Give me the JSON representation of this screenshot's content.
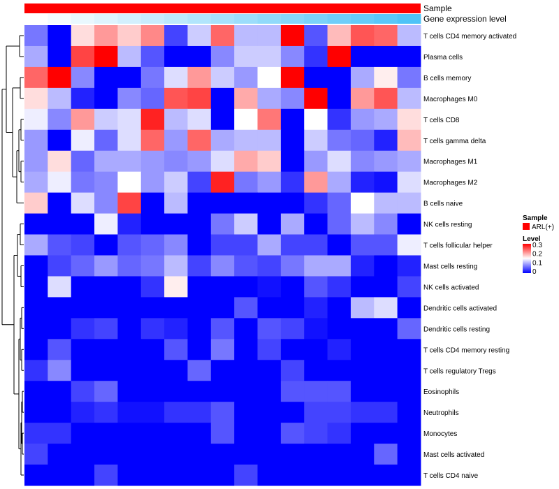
{
  "chart_data": {
    "type": "heatmap",
    "annotations": {
      "sample_label": "Sample",
      "expression_label": "Gene expression level",
      "sample_color": "#ff0000",
      "expression_gradient": [
        "#ffffff",
        "#4fc3f7"
      ]
    },
    "rows": [
      "T cells CD4 memory activated",
      "Plasma cells",
      "B cells memory",
      "Macrophages M0",
      "T cells CD8",
      "T cells gamma delta",
      "Macrophages M1",
      "Macrophages M2",
      "B cells naive",
      "NK cells resting",
      "T cells follicular helper",
      "Mast cells resting",
      "NK cells activated",
      "Dendritic cells activated",
      "Dendritic cells resting",
      "T cells CD4 memory resting",
      "T cells regulatory  Tregs",
      "Eosinophils",
      "Neutrophils",
      "Monocytes",
      "Mast cells activated",
      "T cells CD4 naive"
    ],
    "n_columns": 17,
    "values": [
      [
        0.07,
        0.0,
        0.17,
        0.21,
        0.18,
        0.22,
        0.04,
        0.12,
        0.24,
        0.11,
        0.11,
        0.3,
        0.05,
        0.19,
        0.25,
        0.24,
        0.11
      ],
      [
        0.1,
        0.0,
        0.26,
        0.3,
        0.11,
        0.05,
        0.0,
        0.0,
        0.08,
        0.12,
        0.12,
        0.08,
        0.03,
        0.3,
        0.0,
        0.0,
        0.0
      ],
      [
        0.24,
        0.3,
        0.08,
        0.0,
        0.0,
        0.07,
        0.13,
        0.21,
        0.12,
        0.09,
        0.15,
        0.3,
        0.0,
        0.0,
        0.1,
        0.16,
        0.07
      ],
      [
        0.17,
        0.11,
        0.02,
        0.0,
        0.08,
        0.06,
        0.25,
        0.26,
        0.0,
        0.2,
        0.1,
        0.08,
        0.3,
        0.0,
        0.21,
        0.25,
        0.11
      ],
      [
        0.14,
        0.08,
        0.21,
        0.12,
        0.13,
        0.28,
        0.11,
        0.13,
        0.0,
        0.15,
        0.23,
        0.0,
        0.15,
        0.03,
        0.09,
        0.1,
        0.17
      ],
      [
        0.09,
        0.0,
        0.14,
        0.06,
        0.13,
        0.24,
        0.09,
        0.24,
        0.1,
        0.11,
        0.11,
        0.0,
        0.12,
        0.07,
        0.06,
        0.02,
        0.19
      ],
      [
        0.09,
        0.17,
        0.06,
        0.1,
        0.1,
        0.09,
        0.08,
        0.09,
        0.13,
        0.2,
        0.18,
        0.0,
        0.09,
        0.13,
        0.08,
        0.09,
        0.1
      ],
      [
        0.1,
        0.14,
        0.07,
        0.08,
        0.15,
        0.09,
        0.12,
        0.04,
        0.28,
        0.07,
        0.09,
        0.03,
        0.21,
        0.1,
        0.02,
        0.01,
        0.13
      ],
      [
        0.18,
        0.0,
        0.13,
        0.08,
        0.26,
        0.0,
        0.11,
        0.0,
        0.0,
        0.0,
        0.0,
        0.0,
        0.03,
        0.06,
        0.15,
        0.11,
        0.11
      ],
      [
        0.0,
        0.0,
        0.0,
        0.14,
        0.02,
        0.0,
        0.0,
        0.0,
        0.07,
        0.12,
        0.0,
        0.1,
        0.0,
        0.06,
        0.11,
        0.08,
        0.0
      ],
      [
        0.1,
        0.05,
        0.04,
        0.0,
        0.05,
        0.06,
        0.08,
        0.0,
        0.04,
        0.04,
        0.1,
        0.04,
        0.04,
        0.0,
        0.05,
        0.05,
        0.14
      ],
      [
        0.0,
        0.04,
        0.06,
        0.09,
        0.06,
        0.07,
        0.11,
        0.04,
        0.08,
        0.05,
        0.04,
        0.07,
        0.1,
        0.1,
        0.02,
        0.0,
        0.02
      ],
      [
        0.0,
        0.13,
        0.0,
        0.0,
        0.0,
        0.03,
        0.16,
        0.0,
        0.0,
        0.0,
        0.01,
        0.0,
        0.05,
        0.03,
        0.0,
        0.0,
        0.04
      ],
      [
        0.0,
        0.0,
        0.0,
        0.0,
        0.0,
        0.0,
        0.0,
        0.0,
        0.0,
        0.05,
        0.0,
        0.0,
        0.02,
        0.0,
        0.11,
        0.13,
        0.0
      ],
      [
        0.0,
        0.0,
        0.03,
        0.04,
        0.0,
        0.03,
        0.02,
        0.0,
        0.05,
        0.0,
        0.05,
        0.04,
        0.01,
        0.0,
        0.0,
        0.0,
        0.06
      ],
      [
        0.0,
        0.05,
        0.0,
        0.0,
        0.0,
        0.0,
        0.05,
        0.0,
        0.07,
        0.0,
        0.04,
        0.0,
        0.0,
        0.02,
        0.0,
        0.0,
        0.0
      ],
      [
        0.03,
        0.08,
        0.0,
        0.0,
        0.0,
        0.0,
        0.0,
        0.06,
        0.0,
        0.0,
        0.0,
        0.04,
        0.0,
        0.0,
        0.0,
        0.0,
        0.0
      ],
      [
        0.0,
        0.0,
        0.04,
        0.06,
        0.0,
        0.0,
        0.0,
        0.0,
        0.0,
        0.0,
        0.0,
        0.05,
        0.05,
        0.05,
        0.0,
        0.0,
        0.0
      ],
      [
        0.0,
        0.0,
        0.02,
        0.03,
        0.01,
        0.01,
        0.03,
        0.03,
        0.05,
        0.0,
        0.0,
        0.0,
        0.04,
        0.04,
        0.03,
        0.03,
        0.0
      ],
      [
        0.03,
        0.03,
        0.0,
        0.0,
        0.0,
        0.0,
        0.0,
        0.0,
        0.05,
        0.0,
        0.0,
        0.05,
        0.04,
        0.03,
        0.0,
        0.0,
        0.0
      ],
      [
        0.04,
        0.0,
        0.0,
        0.0,
        0.0,
        0.0,
        0.0,
        0.0,
        0.0,
        0.0,
        0.0,
        0.0,
        0.0,
        0.0,
        0.0,
        0.06,
        0.0
      ],
      [
        0.0,
        0.0,
        0.0,
        0.04,
        0.0,
        0.0,
        0.0,
        0.0,
        0.0,
        0.04,
        0.0,
        0.0,
        0.0,
        0.0,
        0.0,
        0.0,
        0.0
      ]
    ],
    "range": [
      0,
      0.3
    ],
    "colors": {
      "low": "#0000ff",
      "mid": "#ffffff",
      "high": "#ff0000"
    },
    "legend": {
      "sample_title": "Sample",
      "sample_entry": "ARL(+)",
      "level_title": "Level",
      "ticks": [
        "0.3",
        "0.2",
        "0.1",
        "0"
      ]
    },
    "dendrogram": "rows"
  }
}
